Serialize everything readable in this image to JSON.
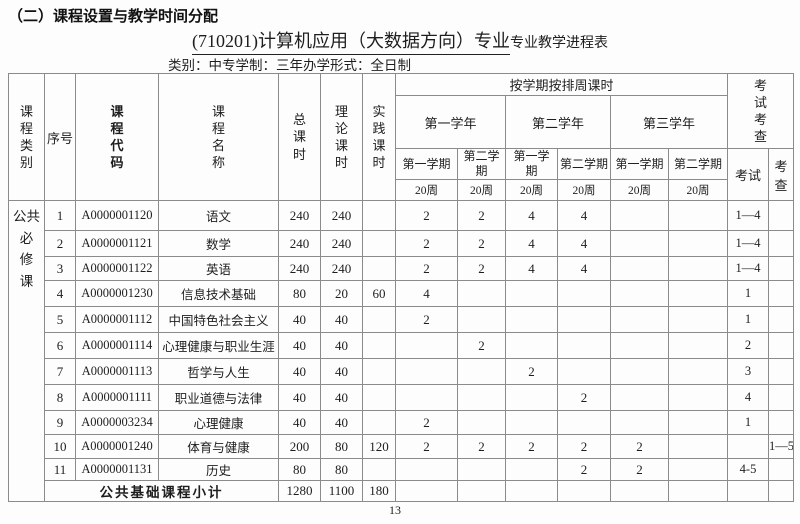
{
  "page": {
    "section_heading": "（二）课程设置与教学时间分配",
    "title": "(710201)计算机应用（大数据方向）专业",
    "title_suffix": "专业教学进程表",
    "meta_line": "类别：中专学制：三年办学形式：全日制",
    "page_number": "13"
  },
  "table": {
    "header": {
      "category": "课\n程\n类\n别",
      "seq": "序号",
      "code": "课\n程\n代\n码",
      "name": "课\n程\n名\n称",
      "total": "总\n课\n时",
      "theory": "理\n论\n课\n时",
      "practice": "实\n践\n课\n时",
      "weekly_hours": "按学期按排周课时",
      "years": [
        "第一学年",
        "第二学年",
        "第三学年"
      ],
      "semesters": [
        "第一学期",
        "第二学\n期",
        "第一学\n期",
        "第二学期",
        "第一学期",
        "第二学期"
      ],
      "weeks": [
        "20周",
        "20周",
        "20周",
        "20周",
        "20周",
        "20周"
      ],
      "exam_check": "考\n试\n考\n查",
      "exam": "考试",
      "check": "考查"
    },
    "category_label": "公共\n必\n修\n课",
    "rows": [
      {
        "seq": "1",
        "code": "A0000001120",
        "name": "语文",
        "total": "240",
        "theory": "240",
        "practice": "",
        "s1": "2",
        "s2": "2",
        "s3": "4",
        "s4": "4",
        "s5": "",
        "s6": "",
        "exam": "1—4",
        "check": ""
      },
      {
        "seq": "2",
        "code": "A0000001121",
        "name": "数学",
        "total": "240",
        "theory": "240",
        "practice": "",
        "s1": "2",
        "s2": "2",
        "s3": "4",
        "s4": "4",
        "s5": "",
        "s6": "",
        "exam": "1—4",
        "check": ""
      },
      {
        "seq": "3",
        "code": "A0000001122",
        "name": "英语",
        "total": "240",
        "theory": "240",
        "practice": "",
        "s1": "2",
        "s2": "2",
        "s3": "4",
        "s4": "4",
        "s5": "",
        "s6": "",
        "exam": "1—4",
        "check": ""
      },
      {
        "seq": "4",
        "code": "A0000001230",
        "name": "信息技术基础",
        "total": "80",
        "theory": "20",
        "practice": "60",
        "s1": "4",
        "s2": "",
        "s3": "",
        "s4": "",
        "s5": "",
        "s6": "",
        "exam": "1",
        "check": ""
      },
      {
        "seq": "5",
        "code": "A0000001112",
        "name": "中国特色社会主义",
        "total": "40",
        "theory": "40",
        "practice": "",
        "s1": "2",
        "s2": "",
        "s3": "",
        "s4": "",
        "s5": "",
        "s6": "",
        "exam": "1",
        "check": ""
      },
      {
        "seq": "6",
        "code": "A0000001114",
        "name": "心理健康与职业生涯",
        "total": "40",
        "theory": "40",
        "practice": "",
        "s1": "",
        "s2": "2",
        "s3": "",
        "s4": "",
        "s5": "",
        "s6": "",
        "exam": "2",
        "check": ""
      },
      {
        "seq": "7",
        "code": "A0000001113",
        "name": "哲学与人生",
        "total": "40",
        "theory": "40",
        "practice": "",
        "s1": "",
        "s2": "",
        "s3": "2",
        "s4": "",
        "s5": "",
        "s6": "",
        "exam": "3",
        "check": ""
      },
      {
        "seq": "8",
        "code": "A0000001111",
        "name": "职业道德与法律",
        "total": "40",
        "theory": "40",
        "practice": "",
        "s1": "",
        "s2": "",
        "s3": "",
        "s4": "2",
        "s5": "",
        "s6": "",
        "exam": "4",
        "check": ""
      },
      {
        "seq": "9",
        "code": "A0000003234",
        "name": "心理健康",
        "total": "40",
        "theory": "40",
        "practice": "",
        "s1": "2",
        "s2": "",
        "s3": "",
        "s4": "",
        "s5": "",
        "s6": "",
        "exam": "1",
        "check": ""
      },
      {
        "seq": "10",
        "code": "A0000001240",
        "name": "体育与健康",
        "total": "200",
        "theory": "80",
        "practice": "120",
        "s1": "2",
        "s2": "2",
        "s3": "2",
        "s4": "2",
        "s5": "2",
        "s6": "",
        "exam": "",
        "check": "1—5"
      },
      {
        "seq": "11",
        "code": "A0000001131",
        "name": "历史",
        "total": "80",
        "theory": "80",
        "practice": "",
        "s1": "",
        "s2": "",
        "s3": "",
        "s4": "2",
        "s5": "2",
        "s6": "",
        "exam": "4-5",
        "check": ""
      }
    ],
    "subtotal": {
      "label": "公共基础课程小计",
      "total": "1280",
      "theory": "1100",
      "practice": "180"
    }
  }
}
